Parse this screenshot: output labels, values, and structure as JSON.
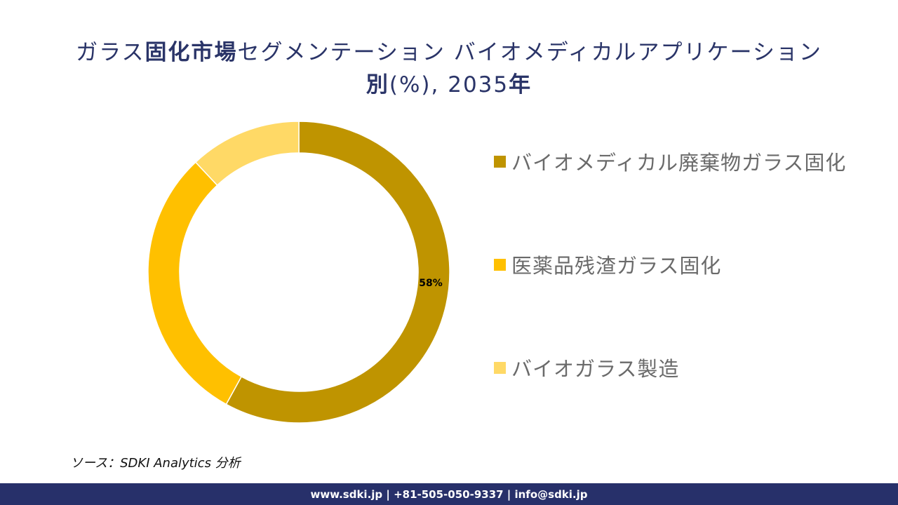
{
  "title": {
    "part1": "ガラス",
    "part2": "固化市場",
    "part3": "セグメンテーション バイオメディカルアプリケーション",
    "part4": "別",
    "part5": "(%), 2035",
    "part6": "年"
  },
  "chart_data": {
    "type": "pie",
    "donut": true,
    "legend_position": "right",
    "slices": [
      {
        "name": "バイオメディカル廃棄物ガラス固化",
        "value": 58,
        "label": "58%",
        "color": "#bf9400"
      },
      {
        "name": "医薬品残渣ガラス固化",
        "value": 30,
        "label": "",
        "color": "#ffc000"
      },
      {
        "name": "バイオガラス製造",
        "value": 12,
        "label": "",
        "color": "#ffd966"
      }
    ]
  },
  "source": "ソース：SDKI Analytics 分析",
  "footer": "www.sdki.jp | +81-505-050-9337 | info@sdki.jp"
}
